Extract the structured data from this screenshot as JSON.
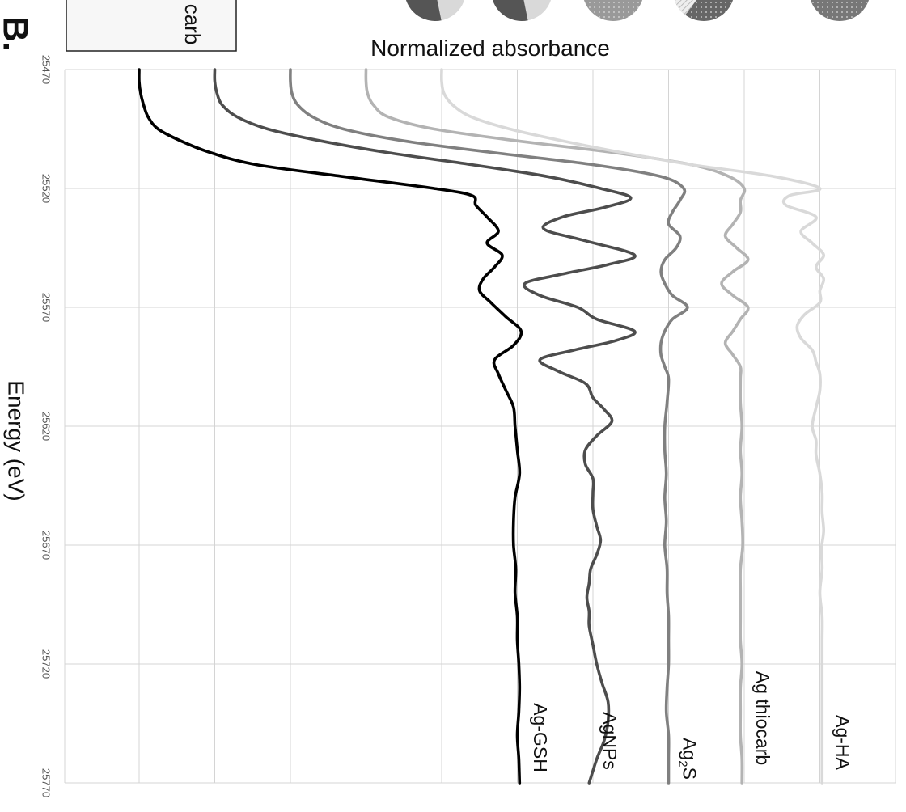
{
  "panel_label": "B.",
  "legend_box_text": "carb",
  "chart_data": {
    "type": "line",
    "orientation": "rotated-90",
    "title": "",
    "xlabel": "Energy (eV)",
    "ylabel": "Normalized absorbance",
    "xlim": [
      25470,
      25770
    ],
    "x_ticks": [
      "25470",
      "25520",
      "25570",
      "25620",
      "25670",
      "25720",
      "25770"
    ],
    "grid": true,
    "series": [
      {
        "name": "Ag-GSH",
        "label_parts": [
          "Ag-GSH"
        ],
        "color": "#000000",
        "baseline": 0.0,
        "points": [
          [
            25470,
            0.0
          ],
          [
            25475,
            0.0
          ],
          [
            25480,
            0.02
          ],
          [
            25485,
            0.06
          ],
          [
            25490,
            0.12
          ],
          [
            25495,
            0.25
          ],
          [
            25500,
            0.55
          ],
          [
            25505,
            0.95
          ],
          [
            25510,
            1.55
          ],
          [
            25515,
            2.7
          ],
          [
            25520,
            3.9
          ],
          [
            25523,
            4.4
          ],
          [
            25527,
            4.45
          ],
          [
            25532,
            4.6
          ],
          [
            25538,
            4.75
          ],
          [
            25543,
            4.6
          ],
          [
            25548,
            4.8
          ],
          [
            25553,
            4.7
          ],
          [
            25558,
            4.55
          ],
          [
            25563,
            4.5
          ],
          [
            25568,
            4.65
          ],
          [
            25574,
            4.85
          ],
          [
            25580,
            5.05
          ],
          [
            25586,
            4.95
          ],
          [
            25592,
            4.7
          ],
          [
            25598,
            4.75
          ],
          [
            25605,
            4.85
          ],
          [
            25612,
            4.95
          ],
          [
            25620,
            4.97
          ],
          [
            25630,
            5.0
          ],
          [
            25640,
            5.03
          ],
          [
            25650,
            4.97
          ],
          [
            25660,
            4.95
          ],
          [
            25670,
            4.95
          ],
          [
            25680,
            4.98
          ],
          [
            25690,
            4.97
          ],
          [
            25700,
            5.0
          ],
          [
            25710,
            5.0
          ],
          [
            25720,
            5.02
          ],
          [
            25730,
            5.03
          ],
          [
            25740,
            5.02
          ],
          [
            25750,
            5.0
          ],
          [
            25760,
            5.02
          ],
          [
            25770,
            5.03
          ]
        ]
      },
      {
        "name": "AgNPs",
        "label_parts": [
          "AgNPs"
        ],
        "color": "#4d4d4d",
        "baseline": 1.0,
        "points": [
          [
            25470,
            1.0
          ],
          [
            25475,
            1.0
          ],
          [
            25480,
            1.03
          ],
          [
            25485,
            1.1
          ],
          [
            25490,
            1.3
          ],
          [
            25495,
            1.7
          ],
          [
            25500,
            2.4
          ],
          [
            25505,
            3.3
          ],
          [
            25510,
            4.4
          ],
          [
            25515,
            5.4
          ],
          [
            25520,
            6.1
          ],
          [
            25524,
            6.5
          ],
          [
            25528,
            6.15
          ],
          [
            25532,
            5.6
          ],
          [
            25537,
            5.35
          ],
          [
            25542,
            5.9
          ],
          [
            25548,
            6.55
          ],
          [
            25552,
            6.2
          ],
          [
            25556,
            5.6
          ],
          [
            25560,
            5.1
          ],
          [
            25565,
            5.3
          ],
          [
            25570,
            5.8
          ],
          [
            25575,
            6.05
          ],
          [
            25580,
            6.55
          ],
          [
            25584,
            6.3
          ],
          [
            25588,
            5.75
          ],
          [
            25592,
            5.3
          ],
          [
            25597,
            5.55
          ],
          [
            25602,
            5.9
          ],
          [
            25608,
            6.0
          ],
          [
            25613,
            6.15
          ],
          [
            25618,
            6.25
          ],
          [
            25624,
            6.05
          ],
          [
            25630,
            5.9
          ],
          [
            25636,
            5.9
          ],
          [
            25642,
            6.0
          ],
          [
            25648,
            6.0
          ],
          [
            25655,
            6.0
          ],
          [
            25662,
            6.05
          ],
          [
            25668,
            6.1
          ],
          [
            25674,
            6.05
          ],
          [
            25680,
            5.97
          ],
          [
            25686,
            5.95
          ],
          [
            25692,
            5.92
          ],
          [
            25698,
            5.95
          ],
          [
            25704,
            5.95
          ],
          [
            25712,
            6.0
          ],
          [
            25720,
            6.05
          ],
          [
            25728,
            6.12
          ],
          [
            25736,
            6.2
          ],
          [
            25744,
            6.2
          ],
          [
            25752,
            6.15
          ],
          [
            25760,
            6.05
          ],
          [
            25770,
            5.95
          ]
        ]
      },
      {
        "name": "Ag2S",
        "label_parts": [
          "Ag",
          "2",
          "S"
        ],
        "color": "#808080",
        "baseline": 2.0,
        "points": [
          [
            25470,
            2.0
          ],
          [
            25475,
            2.0
          ],
          [
            25480,
            2.02
          ],
          [
            25485,
            2.1
          ],
          [
            25490,
            2.3
          ],
          [
            25495,
            2.7
          ],
          [
            25500,
            3.5
          ],
          [
            25505,
            4.7
          ],
          [
            25510,
            6.0
          ],
          [
            25515,
            6.9
          ],
          [
            25520,
            7.2
          ],
          [
            25525,
            7.15
          ],
          [
            25530,
            7.05
          ],
          [
            25535,
            7.0
          ],
          [
            25540,
            7.15
          ],
          [
            25545,
            7.1
          ],
          [
            25550,
            6.95
          ],
          [
            25555,
            6.9
          ],
          [
            25560,
            6.95
          ],
          [
            25565,
            7.05
          ],
          [
            25570,
            7.25
          ],
          [
            25575,
            7.05
          ],
          [
            25580,
            6.95
          ],
          [
            25585,
            6.9
          ],
          [
            25590,
            6.9
          ],
          [
            25595,
            6.95
          ],
          [
            25600,
            7.0
          ],
          [
            25610,
            6.98
          ],
          [
            25620,
            6.95
          ],
          [
            25630,
            6.95
          ],
          [
            25640,
            6.97
          ],
          [
            25650,
            6.95
          ],
          [
            25660,
            6.97
          ],
          [
            25670,
            6.95
          ],
          [
            25680,
            6.98
          ],
          [
            25690,
            6.98
          ],
          [
            25700,
            7.0
          ],
          [
            25710,
            7.0
          ],
          [
            25720,
            7.0
          ],
          [
            25730,
            6.98
          ],
          [
            25740,
            6.97
          ],
          [
            25750,
            7.0
          ],
          [
            25760,
            7.0
          ],
          [
            25770,
            7.0
          ]
        ]
      },
      {
        "name": "Ag thiocarb",
        "label_parts": [
          "Ag thiocarb"
        ],
        "color": "#b3b3b3",
        "baseline": 3.0,
        "points": [
          [
            25470,
            3.0
          ],
          [
            25475,
            3.0
          ],
          [
            25480,
            3.02
          ],
          [
            25485,
            3.1
          ],
          [
            25490,
            3.3
          ],
          [
            25495,
            3.9
          ],
          [
            25500,
            5.0
          ],
          [
            25505,
            6.3
          ],
          [
            25510,
            7.3
          ],
          [
            25515,
            7.8
          ],
          [
            25520,
            8.0
          ],
          [
            25525,
            7.95
          ],
          [
            25530,
            7.95
          ],
          [
            25535,
            7.85
          ],
          [
            25540,
            7.75
          ],
          [
            25545,
            7.9
          ],
          [
            25550,
            8.05
          ],
          [
            25555,
            7.85
          ],
          [
            25560,
            7.7
          ],
          [
            25565,
            7.85
          ],
          [
            25570,
            8.05
          ],
          [
            25575,
            7.95
          ],
          [
            25580,
            7.85
          ],
          [
            25585,
            7.75
          ],
          [
            25590,
            7.85
          ],
          [
            25595,
            7.95
          ],
          [
            25600,
            7.95
          ],
          [
            25610,
            7.95
          ],
          [
            25620,
            7.97
          ],
          [
            25630,
            7.95
          ],
          [
            25640,
            7.97
          ],
          [
            25650,
            7.95
          ],
          [
            25660,
            7.97
          ],
          [
            25670,
            7.98
          ],
          [
            25680,
            7.95
          ],
          [
            25690,
            7.95
          ],
          [
            25700,
            7.95
          ],
          [
            25710,
            7.95
          ],
          [
            25720,
            7.97
          ],
          [
            25730,
            7.95
          ],
          [
            25740,
            7.95
          ],
          [
            25750,
            7.95
          ],
          [
            25760,
            7.97
          ],
          [
            25770,
            7.97
          ]
        ]
      },
      {
        "name": "Ag-HA",
        "label_parts": [
          "Ag-HA"
        ],
        "color": "#d9d9d9",
        "baseline": 4.0,
        "points": [
          [
            25470,
            4.0
          ],
          [
            25475,
            4.0
          ],
          [
            25480,
            4.03
          ],
          [
            25485,
            4.15
          ],
          [
            25490,
            4.4
          ],
          [
            25495,
            4.9
          ],
          [
            25500,
            5.6
          ],
          [
            25505,
            6.4
          ],
          [
            25510,
            7.3
          ],
          [
            25515,
            8.4
          ],
          [
            25520,
            9.0
          ],
          [
            25523,
            8.6
          ],
          [
            25527,
            8.55
          ],
          [
            25532,
            8.95
          ],
          [
            25538,
            8.75
          ],
          [
            25543,
            8.9
          ],
          [
            25548,
            9.05
          ],
          [
            25553,
            8.95
          ],
          [
            25558,
            9.05
          ],
          [
            25563,
            9.0
          ],
          [
            25568,
            9.0
          ],
          [
            25573,
            8.8
          ],
          [
            25578,
            8.7
          ],
          [
            25583,
            8.75
          ],
          [
            25588,
            8.9
          ],
          [
            25593,
            8.95
          ],
          [
            25598,
            9.0
          ],
          [
            25605,
            9.0
          ],
          [
            25612,
            8.95
          ],
          [
            25620,
            8.9
          ],
          [
            25626,
            8.95
          ],
          [
            25632,
            8.95
          ],
          [
            25640,
            9.0
          ],
          [
            25648,
            9.03
          ],
          [
            25656,
            9.03
          ],
          [
            25664,
            9.05
          ],
          [
            25672,
            9.02
          ],
          [
            25680,
            9.03
          ],
          [
            25690,
            9.0
          ],
          [
            25700,
            9.03
          ],
          [
            25710,
            9.03
          ],
          [
            25720,
            9.03
          ],
          [
            25730,
            9.03
          ],
          [
            25740,
            9.03
          ],
          [
            25750,
            9.03
          ],
          [
            25760,
            9.03
          ],
          [
            25770,
            9.03
          ]
        ]
      }
    ]
  },
  "legend_pies": [
    {
      "color": "#555555",
      "style": "split-dark-light"
    },
    {
      "color": "#555555",
      "style": "split-dark-light"
    },
    {
      "color": "#999999",
      "style": "dotted"
    },
    {
      "color": "#666666",
      "style": "split-dotted-hatched"
    },
    {
      "color": "#777777",
      "style": "dotted"
    }
  ]
}
